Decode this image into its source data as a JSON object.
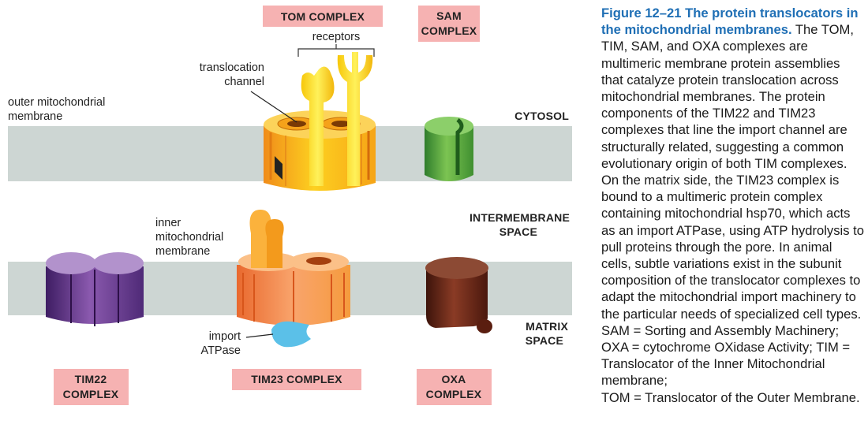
{
  "figure": {
    "labels": {
      "tom_complex": "TOM COMPLEX",
      "sam_complex_1": "SAM",
      "sam_complex_2": "COMPLEX",
      "receptors": "receptors",
      "translocation_1": "translocation",
      "translocation_2": "channel",
      "outer_membrane_1": "outer mitochondrial",
      "outer_membrane_2": "membrane",
      "cytosol": "CYTOSOL",
      "inner_membrane_1": "inner",
      "inner_membrane_2": "mitochondrial",
      "inner_membrane_3": "membrane",
      "intermembrane_1": "INTERMEMBRANE",
      "intermembrane_2": "SPACE",
      "matrix_1": "MATRIX",
      "matrix_2": "SPACE",
      "import_1": "import",
      "import_2": "ATPase",
      "tim22_1": "TIM22",
      "tim22_2": "COMPLEX",
      "tim23": "TIM23 COMPLEX",
      "oxa_1": "OXA",
      "oxa_2": "COMPLEX"
    },
    "colors": {
      "membrane": "#cdd6d3",
      "label_box": "#f6b2b2",
      "tom": "#fbb81c",
      "sam": "#56a840",
      "tim22": "#6a3b8e",
      "tim23": "#f4884a",
      "oxa": "#6a2a1a",
      "atpase": "#5bc0e8"
    }
  },
  "caption": {
    "title": "Figure 12–21 The protein translocators in the mitochondrial membranes.",
    "body": " The TOM, TIM, SAM, and OXA complexes are multimeric membrane protein assemblies that catalyze protein translocation across mitochondrial membranes. The protein components of the TIM22 and TIM23 complexes that line the import channel are structurally related, suggesting a common evolutionary origin of both TIM complexes. On the matrix side, the TIM23 complex is bound to a multimeric protein complex containing mitochondrial hsp70, which acts as an import ATPase, using ATP hydrolysis to pull proteins through the pore. In animal cells, subtle variations exist in the subunit composition of the translocator complexes to adapt the mitochondrial import machinery to the particular needs of specialized cell types. SAM = Sorting and Assembly Machinery; OXA = cytochrome OXidase Activity; TIM = Translocator of the Inner Mitochondrial membrane;\nTOM = Translocator of the Outer Membrane."
  }
}
